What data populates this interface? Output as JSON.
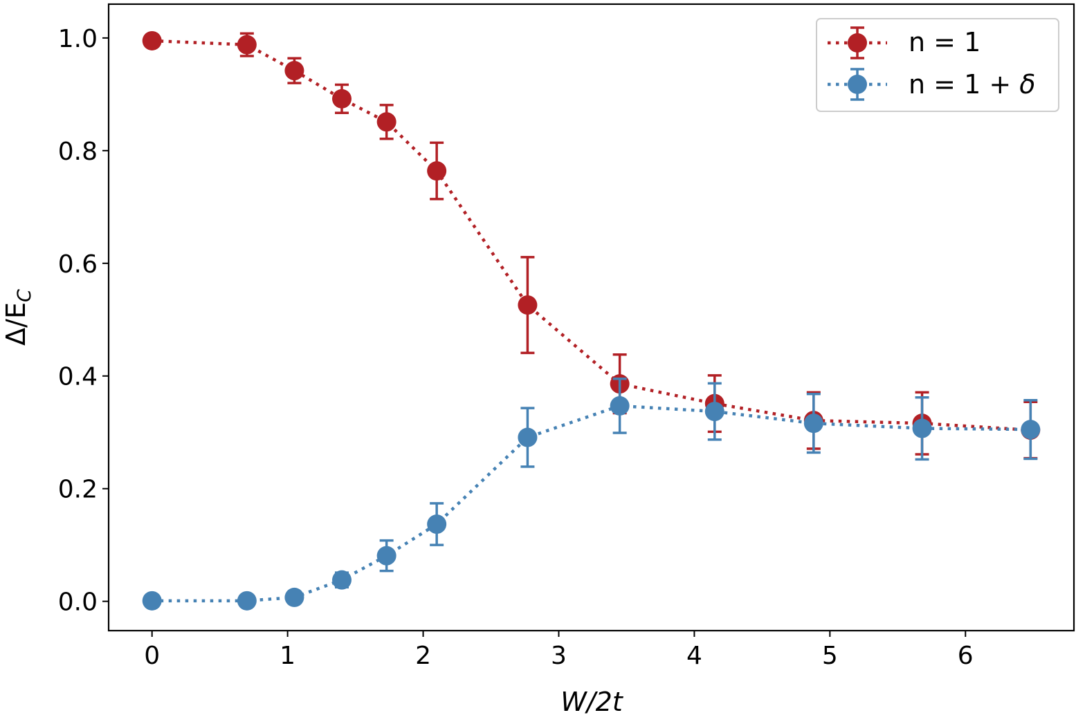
{
  "chart_data": {
    "type": "scatter",
    "title": "",
    "xlabel": "W/2t",
    "ylabel": "Δ/E",
    "ylabel_sub": "C",
    "xlim": [
      -0.32,
      6.8
    ],
    "ylim": [
      -0.052,
      1.06
    ],
    "xticks": [
      0,
      1,
      2,
      3,
      4,
      5,
      6
    ],
    "xtick_labels": [
      "0",
      "1",
      "2",
      "3",
      "4",
      "5",
      "6"
    ],
    "yticks": [
      0.0,
      0.2,
      0.4,
      0.6,
      0.8,
      1.0
    ],
    "ytick_labels": [
      "0.0",
      "0.2",
      "0.4",
      "0.6",
      "0.8",
      "1.0"
    ],
    "grid": false,
    "legend_position": "top-right",
    "series": [
      {
        "name": "n = 1",
        "legend_prefix": "n = 1",
        "legend_symbol": "",
        "color": "#b22025",
        "linestyle": "dotted",
        "x": [
          0,
          0.7,
          1.05,
          1.4,
          1.73,
          2.1,
          2.77,
          3.45,
          4.15,
          4.88,
          5.68,
          6.48
        ],
        "y": [
          0.995,
          0.988,
          0.942,
          0.892,
          0.851,
          0.764,
          0.526,
          0.386,
          0.351,
          0.321,
          0.316,
          0.304
        ],
        "err": [
          0.0,
          0.02,
          0.022,
          0.025,
          0.03,
          0.05,
          0.085,
          0.052,
          0.05,
          0.05,
          0.055,
          0.05
        ]
      },
      {
        "name": "n = 1 + δ",
        "legend_prefix": "n = 1 + ",
        "legend_symbol": "δ",
        "color": "#4682b4",
        "linestyle": "dotted",
        "x": [
          0,
          0.7,
          1.05,
          1.4,
          1.73,
          2.1,
          2.77,
          3.45,
          4.15,
          4.88,
          5.68,
          6.48
        ],
        "y": [
          0.001,
          0.001,
          0.007,
          0.038,
          0.081,
          0.137,
          0.291,
          0.347,
          0.337,
          0.316,
          0.307,
          0.305
        ],
        "err": [
          0.0,
          0.0,
          0.0,
          0.013,
          0.027,
          0.037,
          0.052,
          0.048,
          0.05,
          0.052,
          0.055,
          0.052
        ]
      }
    ]
  }
}
